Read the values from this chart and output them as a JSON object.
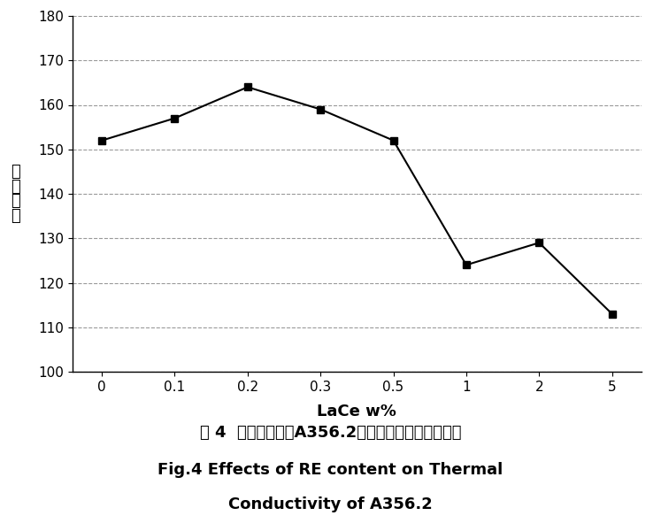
{
  "x_values": [
    0,
    1,
    2,
    3,
    4,
    5,
    6,
    7
  ],
  "y_values": [
    152,
    157,
    164,
    159,
    152,
    124,
    129,
    113
  ],
  "x_tick_labels": [
    "0",
    "0.1",
    "0.2",
    "0.3",
    "0.5",
    "1",
    "2",
    "5"
  ],
  "y_tick_positions": [
    100,
    110,
    120,
    130,
    140,
    150,
    160,
    170,
    180
  ],
  "ylim": [
    100,
    180
  ],
  "xlabel": "LaCe w%",
  "ylabel_chars": [
    "导",
    "热",
    "系",
    "数"
  ],
  "line_color": "#000000",
  "marker": "s",
  "marker_size": 6,
  "marker_facecolor": "#000000",
  "line_width": 1.5,
  "grid_color": "#999999",
  "grid_style": "--",
  "grid_alpha": 1.0,
  "caption_cn": "图 4  稀土加入量对A356.2铝合金导热系数的影响。",
  "caption_en1": "Fig.4 Effects of RE content on Thermal",
  "caption_en2": "Conductivity of A356.2",
  "bg_color": "#ffffff",
  "xlabel_fontsize": 13,
  "ylabel_fontsize": 13,
  "tick_fontsize": 11,
  "caption_cn_fontsize": 13,
  "caption_en_fontsize": 13
}
